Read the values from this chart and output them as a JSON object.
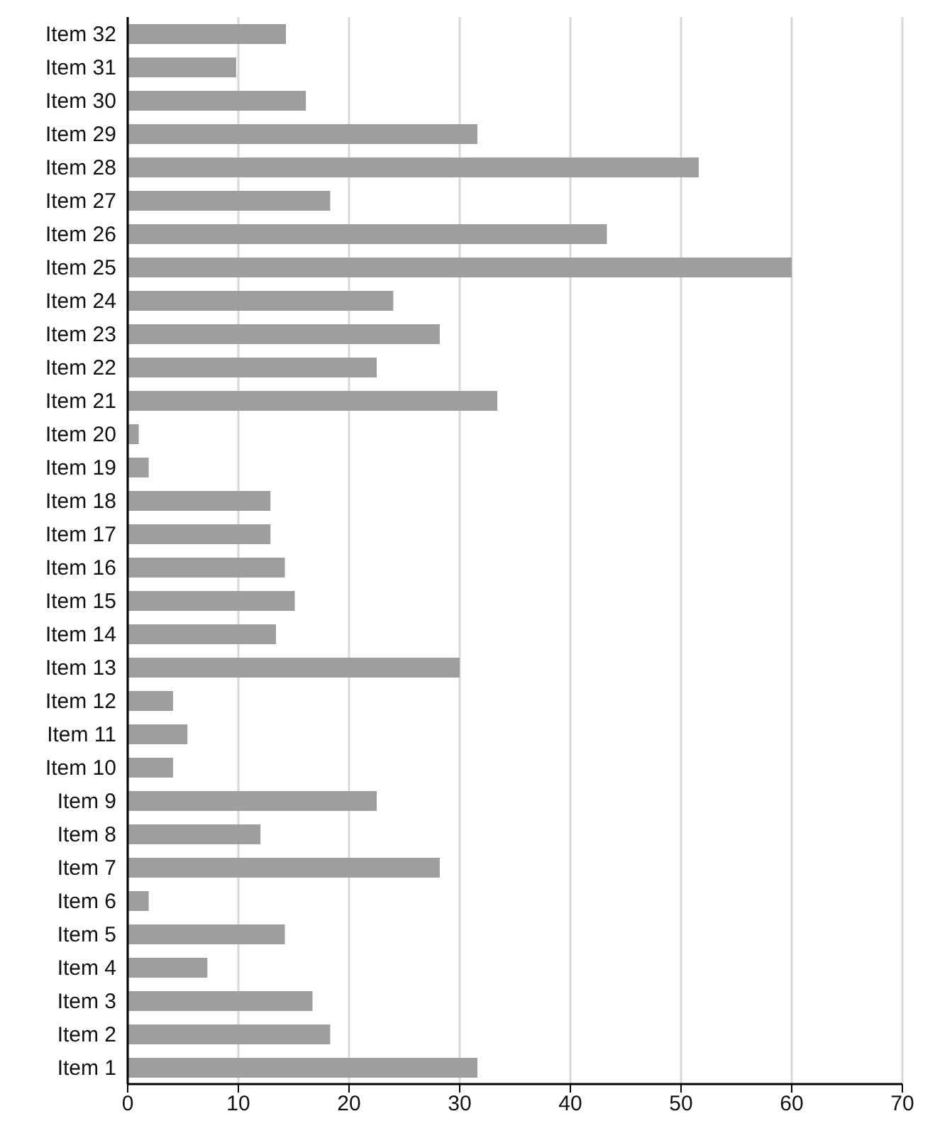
{
  "chart_data": {
    "type": "bar",
    "orientation": "horizontal",
    "categories": [
      "Item 32",
      "Item 31",
      "Item 30",
      "Item 29",
      "Item 28",
      "Item 27",
      "Item 26",
      "Item 25",
      "Item 24",
      "Item 23",
      "Item 22",
      "Item 21",
      "Item 20",
      "Item 19",
      "Item 18",
      "Item 17",
      "Item 16",
      "Item 15",
      "Item 14",
      "Item 13",
      "Item 12",
      "Item 11",
      "Item 10",
      "Item 9",
      "Item 8",
      "Item 7",
      "Item 6",
      "Item 5",
      "Item 4",
      "Item 3",
      "Item 2",
      "Item 1"
    ],
    "values": [
      14.3,
      9.8,
      16.1,
      31.6,
      51.6,
      18.3,
      43.3,
      60,
      24.0,
      28.2,
      22.5,
      33.4,
      1.0,
      1.9,
      12.9,
      12.9,
      14.2,
      15.1,
      13.4,
      30.0,
      4.1,
      5.4,
      4.1,
      22.5,
      12.0,
      28.2,
      1.9,
      14.2,
      7.2,
      16.7,
      18.3,
      31.6
    ],
    "color": "#9e9e9e",
    "xlim": [
      0,
      70
    ],
    "xticks": [
      0,
      10,
      20,
      30,
      40,
      50,
      60,
      70
    ],
    "grid": "x"
  }
}
